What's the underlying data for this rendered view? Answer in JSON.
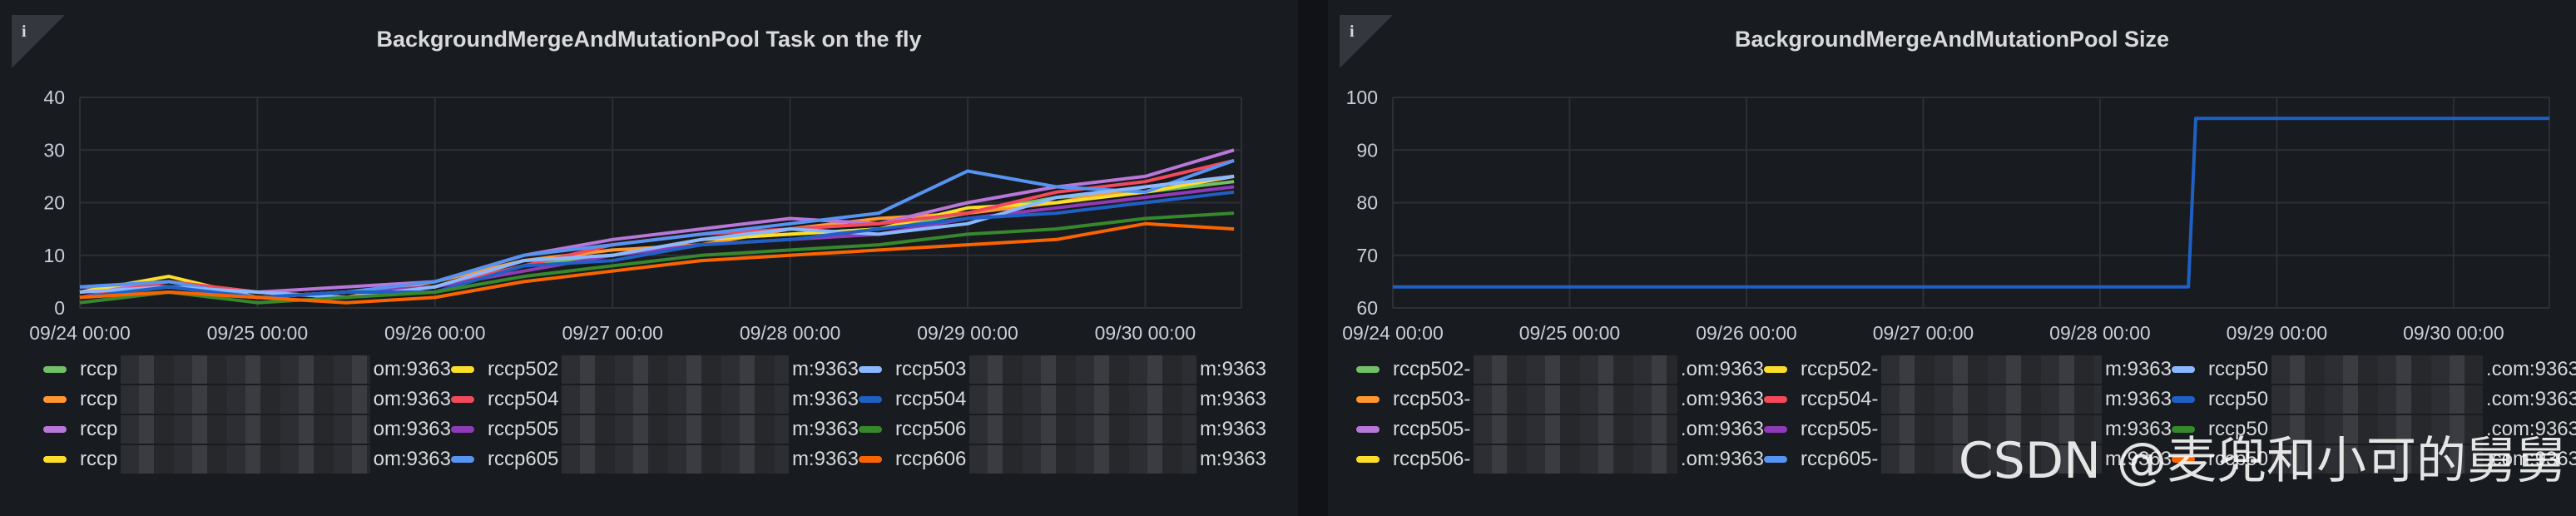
{
  "left_panel": {
    "title": "BackgroundMergeAndMutationPool Task on the fly",
    "info_icon": "info-icon",
    "legend": [
      {
        "name": "rccp",
        "suffix": "om:9363",
        "color": "#73bf69"
      },
      {
        "name": "rccp",
        "suffix": "om:9363",
        "color": "#ff9830"
      },
      {
        "name": "rccp",
        "suffix": "om:9363",
        "color": "#b877d9"
      },
      {
        "name": "rccp",
        "suffix": "om:9363",
        "color": "#fade2a"
      },
      {
        "name": "rccp502",
        "suffix": "m:9363",
        "color": "#fade2a"
      },
      {
        "name": "rccp504",
        "suffix": "m:9363",
        "color": "#f2495c"
      },
      {
        "name": "rccp505",
        "suffix": "m:9363",
        "color": "#8f3bb8"
      },
      {
        "name": "rccp605",
        "suffix": "m:9363",
        "color": "#5794f2"
      },
      {
        "name": "rccp503",
        "suffix": "m:9363",
        "color": "#8ab8ff"
      },
      {
        "name": "rccp504",
        "suffix": "m:9363",
        "color": "#1f60c4"
      },
      {
        "name": "rccp506",
        "suffix": "m:9363",
        "color": "#37872d"
      },
      {
        "name": "rccp606",
        "suffix": "m:9363",
        "color": "#fa6400"
      }
    ]
  },
  "right_panel": {
    "title": "BackgroundMergeAndMutationPool Size",
    "info_icon": "info-icon",
    "legend": [
      {
        "name": "rccp502-",
        "suffix": ".om:9363",
        "color": "#73bf69"
      },
      {
        "name": "rccp503-",
        "suffix": ".om:9363",
        "color": "#ff9830"
      },
      {
        "name": "rccp505-",
        "suffix": ".om:9363",
        "color": "#b877d9"
      },
      {
        "name": "rccp506-",
        "suffix": ".om:9363",
        "color": "#fade2a"
      },
      {
        "name": "rccp502-",
        "suffix": "m:9363",
        "color": "#fade2a"
      },
      {
        "name": "rccp504-",
        "suffix": "m:9363",
        "color": "#f2495c"
      },
      {
        "name": "rccp505-",
        "suffix": "m:9363",
        "color": "#8f3bb8"
      },
      {
        "name": "rccp605-",
        "suffix": "m:9363",
        "color": "#5794f2"
      },
      {
        "name": "rccp50",
        "suffix": ".com:9363",
        "color": "#8ab8ff"
      },
      {
        "name": "rccp50",
        "suffix": ".com:9363",
        "color": "#1f60c4"
      },
      {
        "name": "rccp50",
        "suffix": ".com:9363",
        "color": "#37872d"
      },
      {
        "name": "rccp50",
        "suffix": ".com:9363",
        "color": "#fa6400"
      }
    ]
  },
  "watermark": "CSDN @麦兜和小可的舅舅",
  "chart_data": [
    {
      "type": "line",
      "title": "BackgroundMergeAndMutationPool Task on the fly",
      "x_ticks": [
        "09/24 00:00",
        "09/25 00:00",
        "09/26 00:00",
        "09/27 00:00",
        "09/28 00:00",
        "09/29 00:00",
        "09/30 00:00"
      ],
      "xlim": [
        "09/24 00:00",
        "09/30 13:00"
      ],
      "y_ticks": [
        0,
        10,
        20,
        30,
        40
      ],
      "ylim": [
        0,
        40
      ],
      "grid": true,
      "legend_position": "bottom",
      "x": [
        "09/24 00:00",
        "09/24 12:00",
        "09/25 00:00",
        "09/25 12:00",
        "09/26 00:00",
        "09/26 12:00",
        "09/27 00:00",
        "09/27 12:00",
        "09/28 00:00",
        "09/28 12:00",
        "09/29 00:00",
        "09/29 12:00",
        "09/30 00:00",
        "09/30 12:00"
      ],
      "series": [
        {
          "color": "#73bf69",
          "values": [
            2,
            4,
            2,
            3,
            4,
            8,
            10,
            13,
            14,
            15,
            18,
            21,
            22,
            24
          ]
        },
        {
          "color": "#ff9830",
          "values": [
            3,
            5,
            3,
            2,
            5,
            9,
            11,
            12,
            15,
            17,
            18,
            20,
            23,
            25
          ]
        },
        {
          "color": "#b877d9",
          "values": [
            4,
            4,
            3,
            4,
            5,
            10,
            13,
            15,
            17,
            16,
            20,
            23,
            25,
            30
          ]
        },
        {
          "color": "#fade2a",
          "values": [
            3,
            6,
            2,
            3,
            4,
            9,
            10,
            13,
            14,
            15,
            19,
            20,
            22,
            25
          ]
        },
        {
          "color": "#f2495c",
          "values": [
            2,
            5,
            3,
            2,
            4,
            8,
            12,
            14,
            15,
            16,
            18,
            22,
            24,
            28
          ]
        },
        {
          "color": "#8f3bb8",
          "values": [
            1,
            3,
            2,
            3,
            4,
            7,
            10,
            12,
            13,
            14,
            17,
            19,
            21,
            23
          ]
        },
        {
          "color": "#5794f2",
          "values": [
            4,
            5,
            2,
            3,
            5,
            10,
            12,
            14,
            16,
            18,
            26,
            23,
            22,
            28
          ]
        },
        {
          "color": "#8ab8ff",
          "values": [
            3,
            4,
            3,
            2,
            4,
            9,
            10,
            13,
            15,
            14,
            16,
            21,
            23,
            25
          ]
        },
        {
          "color": "#1f60c4",
          "values": [
            2,
            4,
            2,
            3,
            3,
            8,
            9,
            12,
            13,
            15,
            17,
            18,
            20,
            22
          ]
        },
        {
          "color": "#37872d",
          "values": [
            1,
            3,
            1,
            2,
            3,
            6,
            8,
            10,
            11,
            12,
            14,
            15,
            17,
            18
          ]
        },
        {
          "color": "#fa6400",
          "values": [
            2,
            3,
            2,
            1,
            2,
            5,
            7,
            9,
            10,
            11,
            12,
            13,
            16,
            15
          ]
        }
      ]
    },
    {
      "type": "line",
      "title": "BackgroundMergeAndMutationPool Size",
      "x_ticks": [
        "09/24 00:00",
        "09/25 00:00",
        "09/26 00:00",
        "09/27 00:00",
        "09/28 00:00",
        "09/29 00:00",
        "09/30 00:00"
      ],
      "xlim": [
        "09/24 00:00",
        "09/30 13:00"
      ],
      "y_ticks": [
        60,
        70,
        80,
        90,
        100
      ],
      "ylim": [
        60,
        100
      ],
      "grid": true,
      "legend_position": "bottom",
      "x": [
        "09/24 00:00",
        "09/28 12:00",
        "09/28 13:00",
        "09/30 13:00"
      ],
      "series": [
        {
          "color": "#1f60c4",
          "values": [
            64,
            64,
            96,
            96
          ]
        }
      ]
    }
  ]
}
